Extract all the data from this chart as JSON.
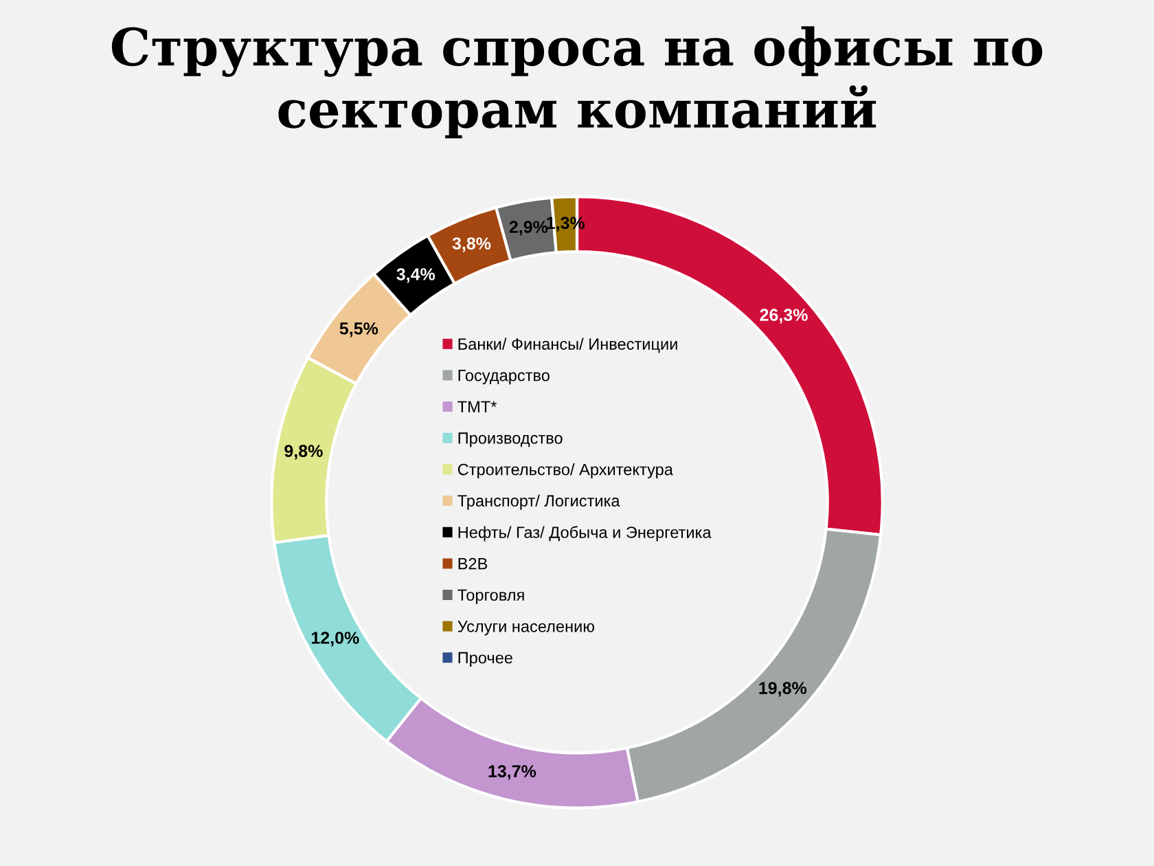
{
  "chart_data": {
    "type": "donut",
    "title": "Структура спроса на офисы по секторам компаний",
    "categories": [
      "Банки/ Финансы/ Инвестиции",
      "Государство",
      "ТМТ*",
      "Производство",
      "Строительство/ Архитектура",
      "Транспорт/ Логистика",
      "Нефть/ Газ/ Добыча и Энергетика",
      "B2B",
      "Торговля",
      "Услуги населению",
      "Прочее"
    ],
    "values": [
      26.3,
      19.8,
      13.7,
      12.0,
      9.8,
      5.5,
      3.4,
      3.8,
      2.9,
      1.3,
      0
    ],
    "colors": [
      "#d00e3a",
      "#9fa6a4",
      "#c396d0",
      "#8fdcd8",
      "#dfe88c",
      "#f0c895",
      "#000000",
      "#a54710",
      "#6a6a6a",
      "#9c7400",
      "#2f4f8f"
    ],
    "value_labels": [
      "26,3%",
      "19,8%",
      "13,7%",
      "12,0%",
      "9,8%",
      "5,5%",
      "3,4%",
      "3,8%",
      "2,9%",
      "1,3%",
      null
    ],
    "legend": "center"
  }
}
